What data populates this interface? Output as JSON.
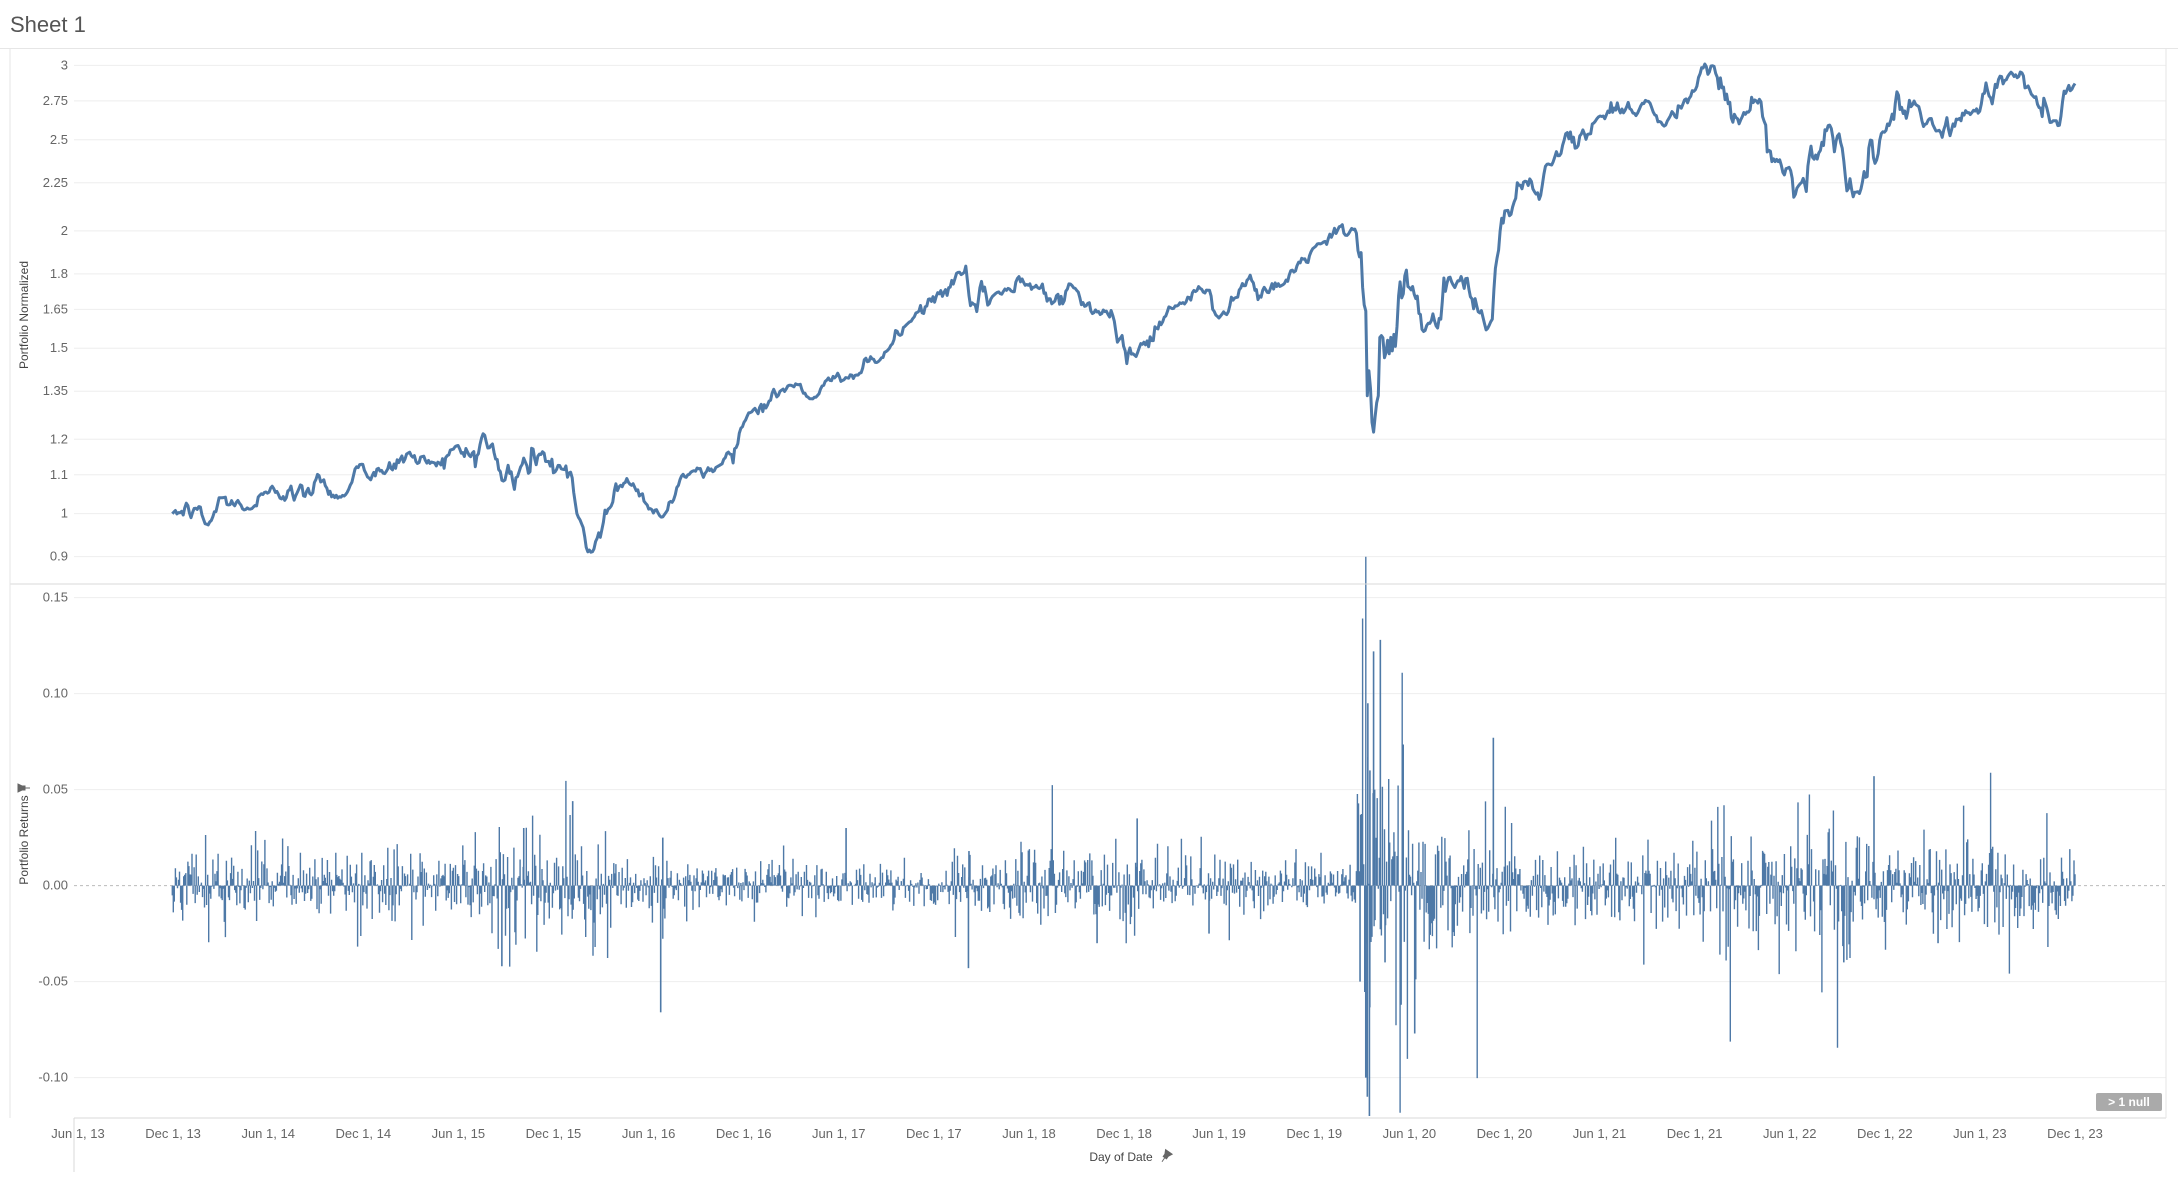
{
  "sheet": {
    "title": "Sheet 1",
    "null_indicator": "> 1 null"
  },
  "colors": {
    "line": "#4e79a7",
    "grid": "#eeeeee",
    "zero": "#bbbbbb",
    "badge": "#aaaaaa"
  },
  "chart_data": [
    {
      "type": "line",
      "title": "",
      "xlabel": "",
      "ylabel": "Portfolio Normalized",
      "x_range": [
        "2013-06-01",
        "2023-12-01"
      ],
      "ylim": [
        0.85,
        3.1
      ],
      "y_scale": "log",
      "yticks": [
        "0.9",
        "1",
        "1.1",
        "1.2",
        "1.35",
        "1.5",
        "1.65",
        "1.8",
        "2",
        "2.25",
        "2.5",
        "2.75",
        "3"
      ],
      "grid": true,
      "series": [
        {
          "points": [
            [
              "2013-11-29",
              1.0
            ],
            [
              "2014-01-15",
              1.01
            ],
            [
              "2014-02-05",
              0.97
            ],
            [
              "2014-03-05",
              1.04
            ],
            [
              "2014-04-15",
              1.01
            ],
            [
              "2014-06-01",
              1.05
            ],
            [
              "2014-07-15",
              1.07
            ],
            [
              "2014-08-10",
              1.04
            ],
            [
              "2014-09-15",
              1.09
            ],
            [
              "2014-10-15",
              1.04
            ],
            [
              "2014-11-25",
              1.13
            ],
            [
              "2015-01-10",
              1.1
            ],
            [
              "2015-02-25",
              1.16
            ],
            [
              "2015-04-01",
              1.13
            ],
            [
              "2015-05-20",
              1.17
            ],
            [
              "2015-06-25",
              1.15
            ],
            [
              "2015-07-20",
              1.22
            ],
            [
              "2015-08-25",
              1.08
            ],
            [
              "2015-09-30",
              1.12
            ],
            [
              "2015-11-03",
              1.16
            ],
            [
              "2015-12-15",
              1.12
            ],
            [
              "2016-01-15",
              1.0
            ],
            [
              "2016-02-11",
              0.91
            ],
            [
              "2016-03-20",
              1.02
            ],
            [
              "2016-04-20",
              1.09
            ],
            [
              "2016-06-27",
              0.99
            ],
            [
              "2016-08-15",
              1.1
            ],
            [
              "2016-10-20",
              1.13
            ],
            [
              "2016-12-10",
              1.28
            ],
            [
              "2017-03-01",
              1.37
            ],
            [
              "2017-04-15",
              1.33
            ],
            [
              "2017-06-15",
              1.4
            ],
            [
              "2017-08-15",
              1.45
            ],
            [
              "2017-10-15",
              1.6
            ],
            [
              "2018-01-26",
              1.8
            ],
            [
              "2018-02-08",
              1.66
            ],
            [
              "2018-04-01",
              1.72
            ],
            [
              "2018-06-15",
              1.75
            ],
            [
              "2018-08-30",
              1.74
            ],
            [
              "2018-10-15",
              1.63
            ],
            [
              "2018-12-24",
              1.47
            ],
            [
              "2019-02-25",
              1.66
            ],
            [
              "2019-05-15",
              1.73
            ],
            [
              "2019-06-03",
              1.62
            ],
            [
              "2019-08-01",
              1.8
            ],
            [
              "2019-08-15",
              1.69
            ],
            [
              "2019-10-01",
              1.75
            ],
            [
              "2019-12-01",
              1.92
            ],
            [
              "2020-02-19",
              2.01
            ],
            [
              "2020-03-05",
              1.7
            ],
            [
              "2020-03-23",
              1.22
            ],
            [
              "2020-04-15",
              1.48
            ],
            [
              "2020-06-08",
              1.75
            ],
            [
              "2020-06-26",
              1.55
            ],
            [
              "2020-09-02",
              1.77
            ],
            [
              "2020-10-30",
              1.58
            ],
            [
              "2020-12-01",
              2.1
            ],
            [
              "2021-03-01",
              2.35
            ],
            [
              "2021-06-01",
              2.65
            ],
            [
              "2021-09-02",
              2.75
            ],
            [
              "2021-10-04",
              2.58
            ],
            [
              "2021-12-01",
              2.82
            ],
            [
              "2022-01-03",
              3.0
            ],
            [
              "2022-02-24",
              2.6
            ],
            [
              "2022-03-29",
              2.75
            ],
            [
              "2022-05-20",
              2.3
            ],
            [
              "2022-06-16",
              2.24
            ],
            [
              "2022-08-16",
              2.6
            ],
            [
              "2022-10-12",
              2.19
            ],
            [
              "2022-12-01",
              2.55
            ],
            [
              "2023-02-02",
              2.72
            ],
            [
              "2023-03-13",
              2.55
            ],
            [
              "2023-05-15",
              2.66
            ],
            [
              "2023-07-31",
              2.95
            ],
            [
              "2023-10-27",
              2.62
            ],
            [
              "2023-11-15",
              2.8
            ],
            [
              "2023-12-01",
              2.87
            ]
          ]
        }
      ]
    },
    {
      "type": "bar",
      "title": "",
      "xlabel": "Day of Date",
      "ylabel": "Portfolio Returns",
      "x_range": [
        "2013-06-01",
        "2023-12-01"
      ],
      "ylim": [
        -0.12,
        0.155
      ],
      "yticks": [
        "0.15",
        "0.10",
        "0.05",
        "0.00",
        "-0.05",
        "-0.10"
      ],
      "xticks": [
        "Jun 1, 13",
        "Dec 1, 13",
        "Jun 1, 14",
        "Dec 1, 14",
        "Jun 1, 15",
        "Dec 1, 15",
        "Jun 1, 16",
        "Dec 1, 16",
        "Jun 1, 17",
        "Dec 1, 17",
        "Jun 1, 18",
        "Dec 1, 18",
        "Jun 1, 19",
        "Dec 1, 19",
        "Jun 1, 20",
        "Dec 1, 20",
        "Jun 1, 21",
        "Dec 1, 21",
        "Jun 1, 22",
        "Dec 1, 22",
        "Jun 1, 23",
        "Dec 1, 23"
      ],
      "grid": true,
      "volatility_regimes": [
        {
          "from": "2013-11-29",
          "to": "2015-07-31",
          "typical_abs": 0.012
        },
        {
          "from": "2015-08-01",
          "to": "2016-03-31",
          "typical_abs": 0.022
        },
        {
          "from": "2016-04-01",
          "to": "2017-12-31",
          "typical_abs": 0.009
        },
        {
          "from": "2018-01-01",
          "to": "2019-02-28",
          "typical_abs": 0.015
        },
        {
          "from": "2019-03-01",
          "to": "2020-02-20",
          "typical_abs": 0.009
        },
        {
          "from": "2020-02-21",
          "to": "2020-05-31",
          "typical_abs": 0.055
        },
        {
          "from": "2020-06-01",
          "to": "2020-12-31",
          "typical_abs": 0.022
        },
        {
          "from": "2021-01-01",
          "to": "2021-12-31",
          "typical_abs": 0.013
        },
        {
          "from": "2022-01-01",
          "to": "2022-12-31",
          "typical_abs": 0.022
        },
        {
          "from": "2023-01-01",
          "to": "2023-12-01",
          "typical_abs": 0.015
        }
      ],
      "extremes": [
        [
          "2015-08-24",
          -0.042
        ],
        [
          "2015-10-05",
          0.03
        ],
        [
          "2016-01-07",
          0.044
        ],
        [
          "2016-06-24",
          -0.066
        ],
        [
          "2016-06-28",
          0.025
        ],
        [
          "2017-06-15",
          0.03
        ],
        [
          "2018-02-05",
          -0.043
        ],
        [
          "2018-02-06",
          0.018
        ],
        [
          "2018-10-10",
          -0.03
        ],
        [
          "2018-12-26",
          0.035
        ],
        [
          "2019-05-13",
          -0.025
        ],
        [
          "2020-02-27",
          -0.05
        ],
        [
          "2020-03-09",
          -0.1
        ],
        [
          "2020-03-12",
          -0.11
        ],
        [
          "2020-03-13",
          0.095
        ],
        [
          "2020-03-16",
          -0.12
        ],
        [
          "2020-03-17",
          0.06
        ],
        [
          "2020-03-24",
          0.122
        ],
        [
          "2020-03-26",
          0.05
        ],
        [
          "2020-04-06",
          0.128
        ],
        [
          "2020-04-15",
          -0.04
        ],
        [
          "2020-06-11",
          -0.077
        ],
        [
          "2020-11-09",
          0.077
        ],
        [
          "2022-09-13",
          -0.04
        ],
        [
          "2022-11-10",
          0.057
        ],
        [
          "2023-03-13",
          -0.03
        ]
      ]
    }
  ]
}
